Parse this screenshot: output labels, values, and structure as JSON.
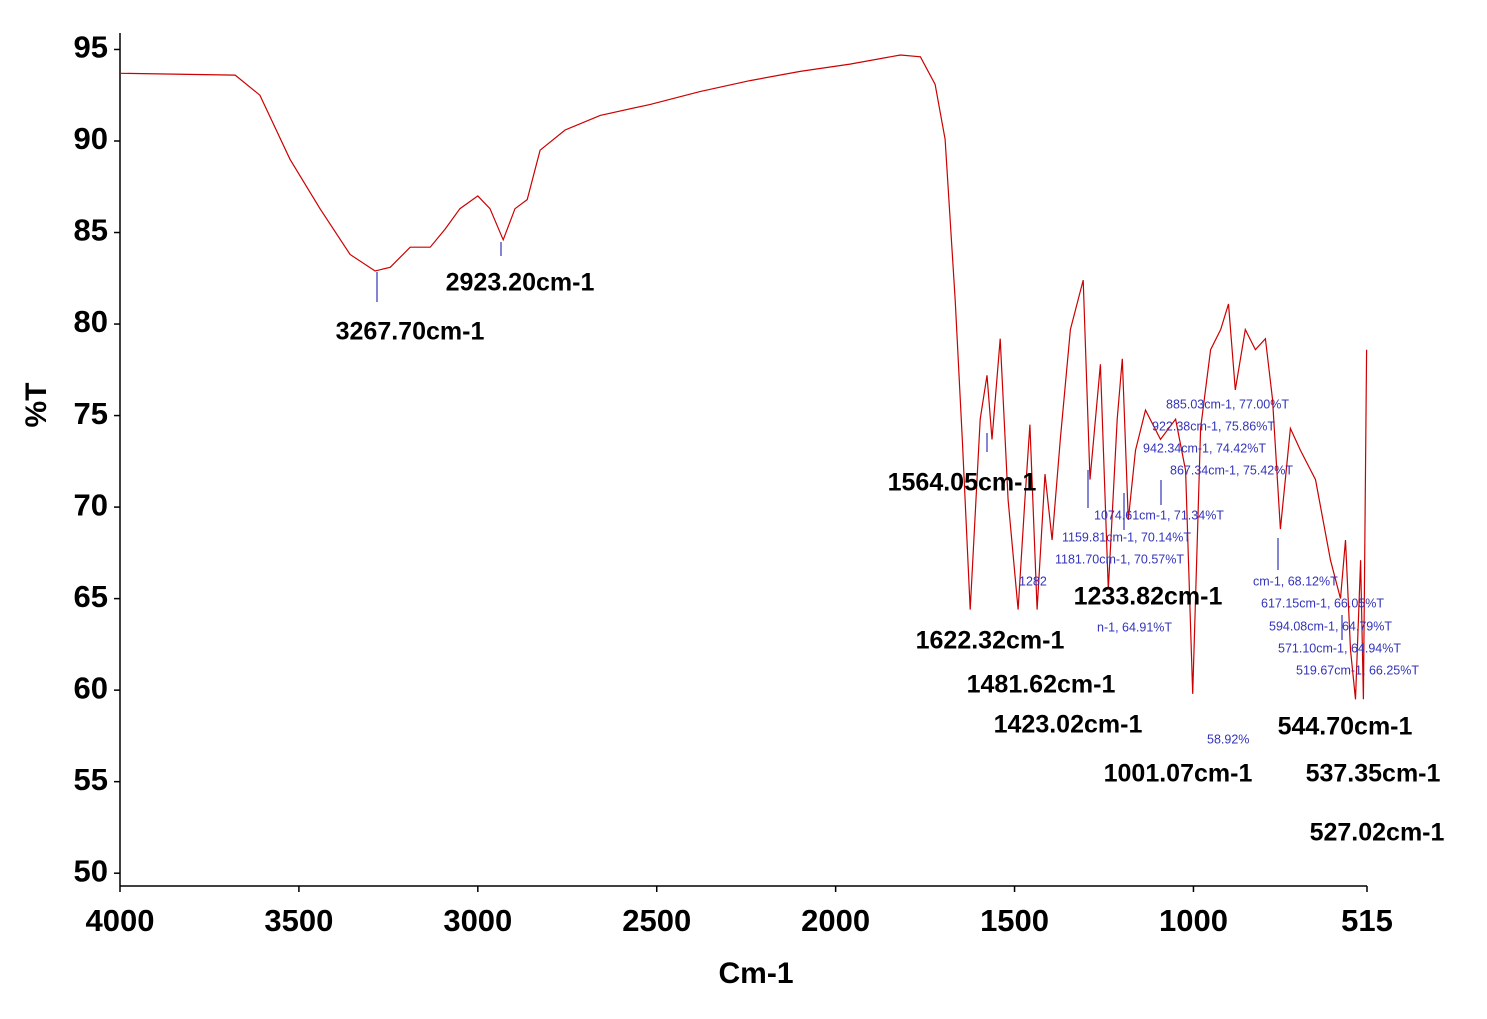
{
  "chart_data": {
    "type": "line",
    "x_label": "Cm-1",
    "y_label": "%T",
    "xlim": [
      4000,
      515
    ],
    "ylim": [
      49.3,
      95.9
    ],
    "xticks": [
      4000,
      3500,
      3000,
      2500,
      2000,
      1500,
      1000,
      515
    ],
    "yticks": [
      50,
      55,
      60,
      65,
      70,
      75,
      80,
      85,
      90,
      95
    ],
    "x": [
      4000,
      3678,
      3609,
      3525,
      3441,
      3357,
      3287,
      3245,
      3189,
      3133,
      3091,
      3050,
      3000,
      2966,
      2929,
      2896,
      2862,
      2826,
      2756,
      2658,
      2518,
      2379,
      2239,
      2099,
      1960,
      1819,
      1763,
      1722,
      1694,
      1666,
      1646,
      1624,
      1596,
      1577,
      1563,
      1540,
      1518,
      1490,
      1471,
      1457,
      1437,
      1415,
      1395,
      1372,
      1344,
      1308,
      1289,
      1260,
      1238,
      1213,
      1199,
      1182,
      1162,
      1134,
      1092,
      1050,
      1022,
      1002,
      980,
      952,
      924,
      902,
      883,
      855,
      827,
      799,
      779,
      757,
      729,
      701,
      659,
      617,
      589,
      575,
      561,
      547,
      533,
      525,
      516
    ],
    "series": [
      {
        "name": "%T",
        "color": "#cc0000",
        "values": [
          93.7,
          93.6,
          92.5,
          89.0,
          86.3,
          83.8,
          82.9,
          83.1,
          84.2,
          84.2,
          85.2,
          86.3,
          87.0,
          86.3,
          84.6,
          86.3,
          86.8,
          89.5,
          90.6,
          91.4,
          92.0,
          92.7,
          93.3,
          93.8,
          94.2,
          94.7,
          94.6,
          93.1,
          90.1,
          81.3,
          73.7,
          64.4,
          74.8,
          77.2,
          73.7,
          79.2,
          70.4,
          64.4,
          70.4,
          74.5,
          64.4,
          71.8,
          68.2,
          73.7,
          79.7,
          82.4,
          71.5,
          77.8,
          65.5,
          74.8,
          78.1,
          69.3,
          73.1,
          75.3,
          73.7,
          74.8,
          72.0,
          59.8,
          74.3,
          78.6,
          79.7,
          81.1,
          76.4,
          79.7,
          78.6,
          79.2,
          75.9,
          68.8,
          74.3,
          73.1,
          71.5,
          67.1,
          65.0,
          68.2,
          62.2,
          59.5,
          67.1,
          59.5,
          78.6
        ]
      }
    ],
    "peak_labels": [
      "3267.70cm-1",
      "2923.20cm-1",
      "1564.05cm-1",
      "1622.32cm-1",
      "1481.62cm-1",
      "1423.02cm-1",
      "1233.82cm-1",
      "1001.07cm-1",
      "544.70cm-1",
      "537.35cm-1",
      "527.02cm-1"
    ],
    "point_labels": [
      "885.03cm-1, 77.00%T",
      "922.38cm-1, 75.86%T",
      "942.34cm-1, 74.42%T",
      "867.34cm-1, 75.42%T",
      "1074.61cm-1, 71.34%T",
      "1159.81cm-1, 70.14%T",
      "1181.70cm-1, 70.57%T",
      "1282",
      "n-1, 64.91%T",
      "cm-1, 68.12%T",
      "617.15cm-1, 66.05%T",
      "594.08cm-1, 64.79%T",
      "571.10cm-1, 64.94%T",
      "519.67cm-1, 66.25%T",
      "58.92%"
    ]
  }
}
